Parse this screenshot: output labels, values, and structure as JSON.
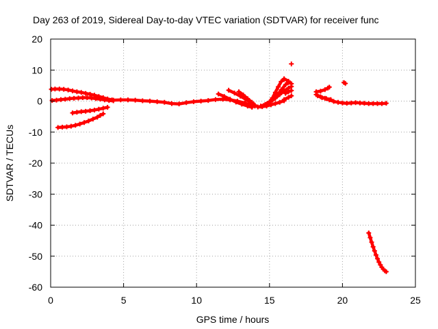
{
  "chart_data": {
    "type": "scatter",
    "title": "Day 263 of 2019, Sidereal Day-to-day VTEC variation (SDTVAR) for receiver func",
    "xlabel": "GPS time / hours",
    "ylabel": "SDTVAR / TECUs",
    "xlim": [
      0,
      25
    ],
    "ylim": [
      -60,
      20
    ],
    "xticks": [
      "0",
      "5",
      "10",
      "15",
      "20",
      "25"
    ],
    "yticks": [
      "20",
      "10",
      "0",
      "-10",
      "-20",
      "-30",
      "-40",
      "-50",
      "-60"
    ],
    "grid": true,
    "marker": "plus",
    "colors": {
      "series": "#ff0000",
      "grid": "#a0a0a0",
      "axis": "#000000"
    },
    "series": [
      {
        "points": [
          [
            0.05,
            3.8
          ],
          [
            0.3,
            3.9
          ],
          [
            0.6,
            3.9
          ],
          [
            0.9,
            3.8
          ],
          [
            1.2,
            3.6
          ],
          [
            1.5,
            3.3
          ],
          [
            1.8,
            3.0
          ],
          [
            2.1,
            2.8
          ],
          [
            2.4,
            2.5
          ],
          [
            2.7,
            2.2
          ],
          [
            3.0,
            1.9
          ],
          [
            3.3,
            1.5
          ],
          [
            3.6,
            1.1
          ],
          [
            3.9,
            0.7
          ],
          [
            4.2,
            0.4
          ]
        ]
      },
      {
        "points": [
          [
            0.1,
            0.2
          ],
          [
            0.4,
            0.3
          ],
          [
            0.7,
            0.5
          ],
          [
            1.0,
            0.6
          ],
          [
            1.3,
            0.8
          ],
          [
            1.6,
            0.9
          ],
          [
            1.9,
            1.0
          ],
          [
            2.2,
            1.1
          ],
          [
            2.5,
            1.1
          ],
          [
            2.8,
            1.0
          ],
          [
            3.1,
            0.8
          ],
          [
            3.4,
            0.6
          ],
          [
            3.7,
            0.4
          ],
          [
            4.0,
            0.2
          ],
          [
            4.3,
            0.1
          ]
        ]
      },
      {
        "points": [
          [
            1.5,
            -3.8
          ],
          [
            1.8,
            -3.6
          ],
          [
            2.1,
            -3.4
          ],
          [
            2.4,
            -3.3
          ],
          [
            2.7,
            -3.1
          ],
          [
            3.0,
            -2.9
          ],
          [
            3.3,
            -2.6
          ],
          [
            3.6,
            -2.3
          ],
          [
            3.9,
            -2.0
          ]
        ]
      },
      {
        "points": [
          [
            0.5,
            -8.5
          ],
          [
            0.8,
            -8.4
          ],
          [
            1.1,
            -8.3
          ],
          [
            1.4,
            -8.1
          ],
          [
            1.7,
            -7.8
          ],
          [
            2.0,
            -7.4
          ],
          [
            2.3,
            -6.9
          ],
          [
            2.6,
            -6.4
          ],
          [
            2.9,
            -5.8
          ],
          [
            3.2,
            -5.2
          ],
          [
            3.4,
            -4.6
          ],
          [
            3.6,
            -4.1
          ]
        ]
      },
      {
        "points": [
          [
            4.3,
            0.3
          ],
          [
            4.8,
            0.4
          ],
          [
            5.3,
            0.4
          ],
          [
            5.8,
            0.3
          ],
          [
            6.3,
            0.1
          ],
          [
            6.8,
            0.0
          ],
          [
            7.3,
            -0.2
          ],
          [
            7.8,
            -0.4
          ],
          [
            8.3,
            -0.8
          ],
          [
            8.8,
            -0.9
          ],
          [
            9.3,
            -0.5
          ],
          [
            9.8,
            -0.2
          ],
          [
            10.3,
            0.0
          ],
          [
            10.8,
            0.2
          ],
          [
            11.3,
            0.5
          ],
          [
            11.8,
            0.6
          ],
          [
            12.3,
            0.4
          ],
          [
            12.8,
            0.0
          ],
          [
            13.3,
            -0.6
          ],
          [
            13.8,
            -1.5
          ]
        ]
      },
      {
        "points": [
          [
            11.5,
            2.3
          ],
          [
            11.9,
            1.5
          ],
          [
            12.3,
            0.6
          ],
          [
            12.7,
            -0.3
          ],
          [
            13.1,
            -1.0
          ],
          [
            13.5,
            -1.6
          ],
          [
            13.8,
            -2.0
          ]
        ]
      },
      {
        "points": [
          [
            12.2,
            3.5
          ],
          [
            12.6,
            2.6
          ],
          [
            13.0,
            1.6
          ],
          [
            13.4,
            0.5
          ],
          [
            13.8,
            -0.8
          ],
          [
            14.0,
            -1.6
          ]
        ]
      },
      {
        "points": [
          [
            12.9,
            3.0
          ],
          [
            13.2,
            2.0
          ],
          [
            13.5,
            0.8
          ],
          [
            13.8,
            -0.4
          ],
          [
            14.0,
            -1.3
          ]
        ]
      },
      {
        "points": [
          [
            14.2,
            -1.9
          ],
          [
            14.5,
            -1.8
          ],
          [
            14.8,
            -1.6
          ],
          [
            15.1,
            -1.2
          ],
          [
            15.4,
            -0.8
          ],
          [
            15.7,
            -0.4
          ],
          [
            16.0,
            0.1
          ]
        ]
      },
      {
        "points": [
          [
            14.4,
            -1.6
          ],
          [
            14.7,
            -1.1
          ],
          [
            15.0,
            -0.2
          ],
          [
            15.2,
            1.0
          ],
          [
            15.4,
            2.8
          ],
          [
            15.6,
            4.6
          ],
          [
            15.8,
            6.3
          ],
          [
            16.0,
            7.0
          ]
        ]
      },
      {
        "points": [
          [
            14.6,
            -1.4
          ],
          [
            14.9,
            -0.7
          ],
          [
            15.2,
            0.3
          ],
          [
            15.5,
            1.8
          ],
          [
            15.8,
            3.6
          ],
          [
            16.1,
            5.3
          ],
          [
            16.3,
            6.0
          ]
        ]
      },
      {
        "points": [
          [
            14.8,
            -0.9
          ],
          [
            15.1,
            -0.1
          ],
          [
            15.4,
            0.9
          ],
          [
            15.7,
            2.1
          ],
          [
            16.0,
            3.3
          ],
          [
            16.3,
            4.2
          ],
          [
            16.5,
            4.7
          ]
        ]
      },
      {
        "points": [
          [
            16.0,
            0.5
          ],
          [
            16.3,
            1.2
          ],
          [
            16.5,
            1.7
          ]
        ]
      },
      {
        "points": [
          [
            16.1,
            2.5
          ],
          [
            16.3,
            3.0
          ],
          [
            16.5,
            3.4
          ]
        ]
      },
      {
        "points": [
          [
            16.0,
            7.2
          ],
          [
            16.3,
            6.4
          ],
          [
            16.5,
            5.6
          ]
        ]
      },
      {
        "points": [
          [
            16.5,
            12.0
          ]
        ]
      },
      {
        "points": [
          [
            18.2,
            2.1
          ],
          [
            18.5,
            1.4
          ],
          [
            18.8,
            0.9
          ],
          [
            19.1,
            0.4
          ],
          [
            19.4,
            -0.1
          ],
          [
            19.7,
            -0.4
          ],
          [
            20.0,
            -0.6
          ],
          [
            20.3,
            -0.7
          ],
          [
            20.6,
            -0.6
          ],
          [
            20.9,
            -0.5
          ],
          [
            21.2,
            -0.6
          ],
          [
            21.5,
            -0.7
          ],
          [
            21.8,
            -0.8
          ],
          [
            22.1,
            -0.8
          ],
          [
            22.4,
            -0.8
          ],
          [
            22.7,
            -0.8
          ],
          [
            23.0,
            -0.7
          ]
        ]
      },
      {
        "points": [
          [
            18.2,
            3.0
          ],
          [
            18.5,
            3.2
          ],
          [
            18.8,
            3.7
          ],
          [
            19.0,
            4.2
          ],
          [
            19.1,
            4.5
          ]
        ]
      },
      {
        "points": [
          [
            18.3,
            1.7
          ],
          [
            18.6,
            1.1
          ],
          [
            18.9,
            0.8
          ],
          [
            19.2,
            0.5
          ]
        ]
      },
      {
        "points": [
          [
            20.1,
            6.0
          ],
          [
            20.2,
            5.7
          ]
        ]
      },
      {
        "points": [
          [
            21.8,
            -42.5
          ],
          [
            21.9,
            -44.0
          ],
          [
            22.0,
            -45.5
          ],
          [
            22.1,
            -47.0
          ],
          [
            22.2,
            -48.3
          ],
          [
            22.3,
            -49.6
          ],
          [
            22.4,
            -50.8
          ],
          [
            22.5,
            -51.9
          ],
          [
            22.6,
            -52.8
          ],
          [
            22.7,
            -53.6
          ],
          [
            22.8,
            -54.2
          ],
          [
            22.9,
            -54.7
          ],
          [
            23.0,
            -55.0
          ]
        ]
      }
    ]
  }
}
